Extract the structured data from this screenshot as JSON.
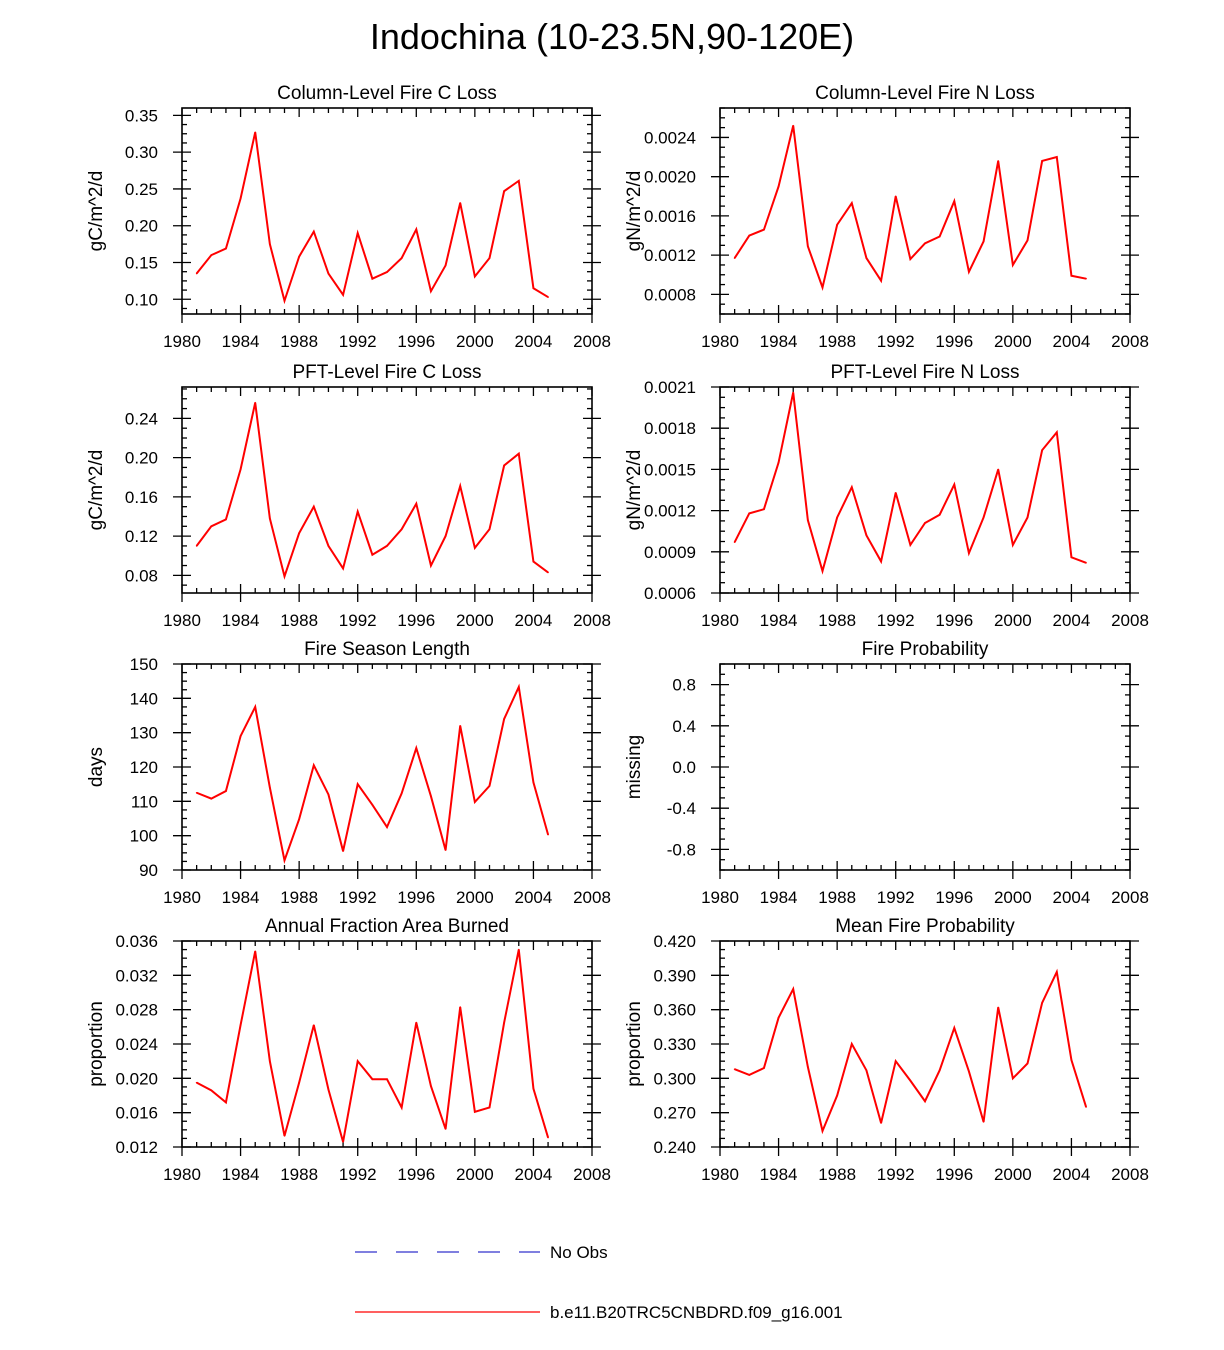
{
  "page_title": "Indochina (10-23.5N,90-120E)",
  "colors": {
    "model_line": "#ff0000",
    "obs_line": "#3333cc",
    "axis": "#000000"
  },
  "legend": {
    "items": [
      {
        "label": "No Obs",
        "style": "dashed",
        "color": "#3333cc"
      },
      {
        "label": "b.e11.B20TRC5CNBDRD.f09_g16.001",
        "style": "solid",
        "color": "#ff0000"
      }
    ]
  },
  "chart_data": [
    {
      "type": "line",
      "title": "Column-Level Fire C Loss",
      "ylabel": "gC/m^2/d",
      "xlim": [
        1980,
        2008
      ],
      "ylim": [
        0.08,
        0.36
      ],
      "xticks": [
        1980,
        1984,
        1988,
        1992,
        1996,
        2000,
        2004,
        2008
      ],
      "yticks": [
        "0.10",
        "0.15",
        "0.20",
        "0.25",
        "0.30",
        "0.35"
      ],
      "x": [
        1981,
        1982,
        1983,
        1984,
        1985,
        1986,
        1987,
        1988,
        1989,
        1990,
        1991,
        1992,
        1993,
        1994,
        1995,
        1996,
        1997,
        1998,
        1999,
        2000,
        2001,
        2002,
        2003,
        2004,
        2005
      ],
      "series": [
        {
          "values": [
            0.135,
            0.16,
            0.169,
            0.237,
            0.327,
            0.175,
            0.098,
            0.158,
            0.192,
            0.135,
            0.106,
            0.19,
            0.128,
            0.137,
            0.156,
            0.195,
            0.111,
            0.146,
            0.231,
            0.131,
            0.156,
            0.247,
            0.261,
            0.115,
            0.103
          ]
        }
      ]
    },
    {
      "type": "line",
      "title": "Column-Level Fire N Loss",
      "ylabel": "gN/m^2/d",
      "xlim": [
        1980,
        2008
      ],
      "ylim": [
        0.0006,
        0.0027
      ],
      "xticks": [
        1980,
        1984,
        1988,
        1992,
        1996,
        2000,
        2004,
        2008
      ],
      "yticks": [
        "0.0008",
        "0.0012",
        "0.0016",
        "0.0020",
        "0.0024"
      ],
      "x": [
        1981,
        1982,
        1983,
        1984,
        1985,
        1986,
        1987,
        1988,
        1989,
        1990,
        1991,
        1992,
        1993,
        1994,
        1995,
        1996,
        1997,
        1998,
        1999,
        2000,
        2001,
        2002,
        2003,
        2004,
        2005
      ],
      "series": [
        {
          "values": [
            0.00117,
            0.0014,
            0.00146,
            0.0019,
            0.00252,
            0.00129,
            0.00087,
            0.00151,
            0.00173,
            0.00117,
            0.00094,
            0.0018,
            0.00116,
            0.00132,
            0.00139,
            0.00175,
            0.00103,
            0.00134,
            0.00216,
            0.0011,
            0.00135,
            0.00216,
            0.0022,
            0.00099,
            0.00096
          ]
        }
      ]
    },
    {
      "type": "line",
      "title": "PFT-Level Fire C Loss",
      "ylabel": "gC/m^2/d",
      "xlim": [
        1980,
        2008
      ],
      "ylim": [
        0.062,
        0.272
      ],
      "xticks": [
        1980,
        1984,
        1988,
        1992,
        1996,
        2000,
        2004,
        2008
      ],
      "yticks": [
        "0.08",
        "0.12",
        "0.16",
        "0.20",
        "0.24"
      ],
      "x": [
        1981,
        1982,
        1983,
        1984,
        1985,
        1986,
        1987,
        1988,
        1989,
        1990,
        1991,
        1992,
        1993,
        1994,
        1995,
        1996,
        1997,
        1998,
        1999,
        2000,
        2001,
        2002,
        2003,
        2004,
        2005
      ],
      "series": [
        {
          "values": [
            0.11,
            0.13,
            0.137,
            0.188,
            0.256,
            0.138,
            0.079,
            0.123,
            0.15,
            0.11,
            0.087,
            0.145,
            0.101,
            0.11,
            0.127,
            0.153,
            0.09,
            0.12,
            0.171,
            0.108,
            0.127,
            0.192,
            0.204,
            0.094,
            0.083
          ]
        }
      ]
    },
    {
      "type": "line",
      "title": "PFT-Level Fire N Loss",
      "ylabel": "gN/m^2/d",
      "xlim": [
        1980,
        2008
      ],
      "ylim": [
        0.0006,
        0.0021
      ],
      "xticks": [
        1980,
        1984,
        1988,
        1992,
        1996,
        2000,
        2004,
        2008
      ],
      "yticks": [
        "0.0006",
        "0.0009",
        "0.0012",
        "0.0015",
        "0.0018",
        "0.0021"
      ],
      "x": [
        1981,
        1982,
        1983,
        1984,
        1985,
        1986,
        1987,
        1988,
        1989,
        1990,
        1991,
        1992,
        1993,
        1994,
        1995,
        1996,
        1997,
        1998,
        1999,
        2000,
        2001,
        2002,
        2003,
        2004,
        2005
      ],
      "series": [
        {
          "values": [
            0.00097,
            0.00118,
            0.00121,
            0.00155,
            0.00206,
            0.00113,
            0.00076,
            0.00115,
            0.00137,
            0.00102,
            0.00083,
            0.00133,
            0.00095,
            0.00111,
            0.00117,
            0.00139,
            0.00089,
            0.00115,
            0.0015,
            0.00095,
            0.00115,
            0.00164,
            0.00177,
            0.00086,
            0.00082
          ]
        }
      ]
    },
    {
      "type": "line",
      "title": "Fire Season Length",
      "ylabel": "days",
      "xlim": [
        1980,
        2008
      ],
      "ylim": [
        90,
        150
      ],
      "xticks": [
        1980,
        1984,
        1988,
        1992,
        1996,
        2000,
        2004,
        2008
      ],
      "yticks": [
        "90",
        "100",
        "110",
        "120",
        "130",
        "140",
        "150"
      ],
      "x": [
        1981,
        1982,
        1983,
        1984,
        1985,
        1986,
        1987,
        1988,
        1989,
        1990,
        1991,
        1992,
        1993,
        1994,
        1995,
        1996,
        1997,
        1998,
        1999,
        2000,
        2001,
        2002,
        2003,
        2004,
        2005
      ],
      "series": [
        {
          "values": [
            112.5,
            110.8,
            113.0,
            129.0,
            137.5,
            114.0,
            92.8,
            104.8,
            120.5,
            112.0,
            95.5,
            115.0,
            109.0,
            102.5,
            112.3,
            125.5,
            111.5,
            95.8,
            132.0,
            109.8,
            114.5,
            134.0,
            143.3,
            115.5,
            100.3
          ]
        }
      ]
    },
    {
      "type": "line",
      "title": "Fire Probability",
      "ylabel": "missing",
      "xlim": [
        1980,
        2008
      ],
      "ylim": [
        -1.0,
        1.0
      ],
      "xticks": [
        1980,
        1984,
        1988,
        1992,
        1996,
        2000,
        2004,
        2008
      ],
      "yticks": [
        "-0.8",
        "-0.4",
        "0.0",
        "0.4",
        "0.8"
      ],
      "x": [],
      "series": []
    },
    {
      "type": "line",
      "title": "Annual Fraction Area Burned",
      "ylabel": "proportion",
      "xlim": [
        1980,
        2008
      ],
      "ylim": [
        0.012,
        0.036
      ],
      "xticks": [
        1980,
        1984,
        1988,
        1992,
        1996,
        2000,
        2004,
        2008
      ],
      "yticks": [
        "0.012",
        "0.016",
        "0.020",
        "0.024",
        "0.028",
        "0.032",
        "0.036"
      ],
      "x": [
        1981,
        1982,
        1983,
        1984,
        1985,
        1986,
        1987,
        1988,
        1989,
        1990,
        1991,
        1992,
        1993,
        1994,
        1995,
        1996,
        1997,
        1998,
        1999,
        2000,
        2001,
        2002,
        2003,
        2004,
        2005
      ],
      "series": [
        {
          "values": [
            0.0195,
            0.0186,
            0.0172,
            0.0262,
            0.0348,
            0.022,
            0.0133,
            0.0195,
            0.0262,
            0.0187,
            0.0126,
            0.022,
            0.0199,
            0.0199,
            0.0166,
            0.0265,
            0.0191,
            0.0141,
            0.0283,
            0.0161,
            0.0166,
            0.0265,
            0.035,
            0.0188,
            0.0131
          ]
        }
      ]
    },
    {
      "type": "line",
      "title": "Mean Fire Probability",
      "ylabel": "proportion",
      "xlim": [
        1980,
        2008
      ],
      "ylim": [
        0.24,
        0.42
      ],
      "xticks": [
        1980,
        1984,
        1988,
        1992,
        1996,
        2000,
        2004,
        2008
      ],
      "yticks": [
        "0.240",
        "0.270",
        "0.300",
        "0.330",
        "0.360",
        "0.390",
        "0.420"
      ],
      "x": [
        1981,
        1982,
        1983,
        1984,
        1985,
        1986,
        1987,
        1988,
        1989,
        1990,
        1991,
        1992,
        1993,
        1994,
        1995,
        1996,
        1997,
        1998,
        1999,
        2000,
        2001,
        2002,
        2003,
        2004,
        2005
      ],
      "series": [
        {
          "values": [
            0.308,
            0.303,
            0.309,
            0.353,
            0.378,
            0.31,
            0.254,
            0.285,
            0.33,
            0.307,
            0.261,
            0.315,
            0.298,
            0.28,
            0.307,
            0.344,
            0.306,
            0.262,
            0.362,
            0.3,
            0.313,
            0.366,
            0.393,
            0.316,
            0.275
          ]
        }
      ]
    }
  ]
}
